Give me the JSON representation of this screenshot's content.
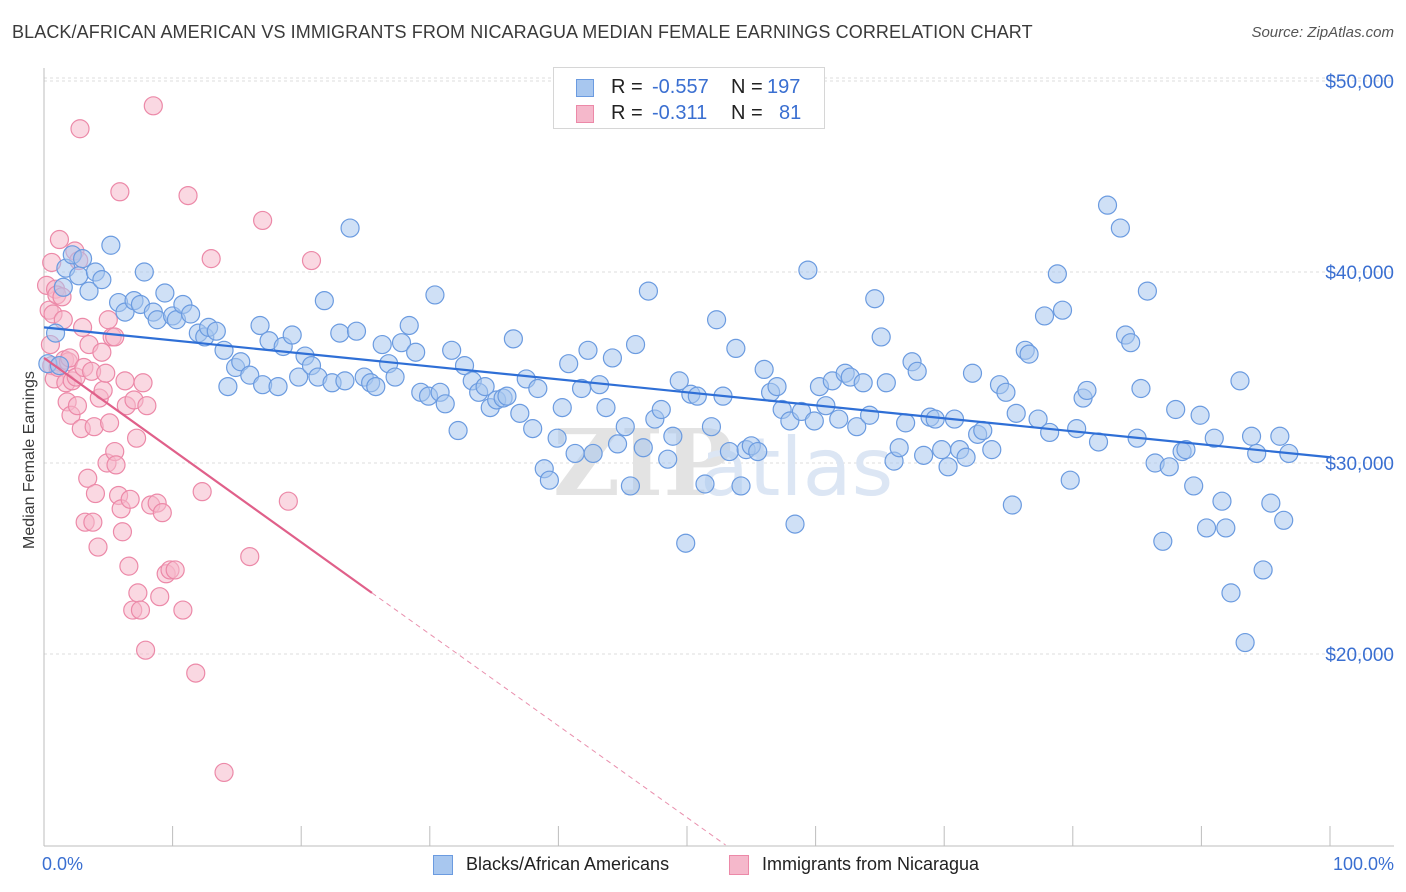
{
  "title": "BLACK/AFRICAN AMERICAN VS IMMIGRANTS FROM NICARAGUA MEDIAN FEMALE EARNINGS CORRELATION CHART",
  "source": "Source: ZipAtlas.com",
  "stats": {
    "r_label": "R =",
    "n_label": "N =",
    "row1": {
      "r": "-0.557",
      "n": "197"
    },
    "row2": {
      "r": "-0.311",
      "n": "81"
    }
  },
  "legend": {
    "series1": "Blacks/African Americans",
    "series2": "Immigrants from Nicaragua"
  },
  "colors": {
    "blue_fill": "#a8c7ef",
    "blue_stroke": "#6b9be0",
    "blue_line": "#2f6fd6",
    "pink_fill": "#f5b8cb",
    "pink_stroke": "#ec89a8",
    "pink_line": "#e0608a",
    "axis_text": "#3a6fd1"
  },
  "chart_data": {
    "type": "scatter",
    "title": "BLACK/AFRICAN AMERICAN VS IMMIGRANTS FROM NICARAGUA MEDIAN FEMALE EARNINGS CORRELATION CHART",
    "xlabel": "",
    "ylabel": "Median Female Earnings",
    "xlim": [
      0,
      100
    ],
    "ylim": [
      10000,
      52000
    ],
    "x_tick_labels": [
      "0.0%",
      "100.0%"
    ],
    "y_ticks": [
      20000,
      30000,
      40000,
      50000
    ],
    "y_tick_labels": [
      "$20,000",
      "$30,000",
      "$40,000",
      "$50,000"
    ],
    "grid": true,
    "watermark": "ZIPatlas",
    "series": [
      {
        "name": "Blacks/African Americans",
        "r": -0.557,
        "n": 197,
        "trend": {
          "x": [
            0,
            100
          ],
          "y": [
            37100,
            30300
          ]
        },
        "points": [
          [
            0.3,
            35200
          ],
          [
            0.9,
            36800
          ],
          [
            1.2,
            35100
          ],
          [
            1.5,
            39200
          ],
          [
            1.7,
            40200
          ],
          [
            2.2,
            40900
          ],
          [
            2.7,
            39800
          ],
          [
            3.0,
            40700
          ],
          [
            3.5,
            39000
          ],
          [
            4.0,
            40000
          ],
          [
            4.5,
            39600
          ],
          [
            5.2,
            41400
          ],
          [
            5.8,
            38400
          ],
          [
            6.3,
            37900
          ],
          [
            7.0,
            38500
          ],
          [
            7.5,
            38300
          ],
          [
            7.8,
            40000
          ],
          [
            8.5,
            37900
          ],
          [
            8.8,
            37500
          ],
          [
            9.4,
            38900
          ],
          [
            10.0,
            37700
          ],
          [
            10.3,
            37500
          ],
          [
            10.8,
            38300
          ],
          [
            11.4,
            37800
          ],
          [
            12.0,
            36800
          ],
          [
            12.5,
            36600
          ],
          [
            12.8,
            37100
          ],
          [
            13.4,
            36900
          ],
          [
            14.0,
            35900
          ],
          [
            14.3,
            34000
          ],
          [
            14.9,
            35000
          ],
          [
            15.3,
            35300
          ],
          [
            16.0,
            34600
          ],
          [
            16.8,
            37200
          ],
          [
            17.0,
            34100
          ],
          [
            17.5,
            36400
          ],
          [
            18.2,
            34000
          ],
          [
            18.6,
            36100
          ],
          [
            19.3,
            36700
          ],
          [
            19.8,
            34500
          ],
          [
            20.3,
            35600
          ],
          [
            20.8,
            35100
          ],
          [
            21.3,
            34500
          ],
          [
            21.8,
            38500
          ],
          [
            22.4,
            34200
          ],
          [
            23.0,
            36800
          ],
          [
            23.4,
            34300
          ],
          [
            23.8,
            42300
          ],
          [
            24.3,
            36900
          ],
          [
            24.9,
            34500
          ],
          [
            25.4,
            34200
          ],
          [
            25.8,
            34000
          ],
          [
            26.3,
            36200
          ],
          [
            26.8,
            35200
          ],
          [
            27.3,
            34500
          ],
          [
            27.8,
            36300
          ],
          [
            28.4,
            37200
          ],
          [
            28.9,
            35800
          ],
          [
            29.3,
            33700
          ],
          [
            29.9,
            33500
          ],
          [
            30.4,
            38800
          ],
          [
            30.8,
            33700
          ],
          [
            31.2,
            33100
          ],
          [
            31.7,
            35900
          ],
          [
            32.2,
            31700
          ],
          [
            32.7,
            35100
          ],
          [
            33.3,
            34300
          ],
          [
            33.8,
            33700
          ],
          [
            34.3,
            34000
          ],
          [
            34.7,
            32900
          ],
          [
            35.2,
            33300
          ],
          [
            35.7,
            33400
          ],
          [
            36.0,
            33500
          ],
          [
            36.5,
            36500
          ],
          [
            37.0,
            32600
          ],
          [
            37.5,
            34400
          ],
          [
            38.0,
            31800
          ],
          [
            38.4,
            33900
          ],
          [
            38.9,
            29700
          ],
          [
            39.3,
            29100
          ],
          [
            39.9,
            31300
          ],
          [
            40.3,
            32900
          ],
          [
            40.8,
            35200
          ],
          [
            41.3,
            30500
          ],
          [
            41.8,
            33900
          ],
          [
            42.3,
            35900
          ],
          [
            42.7,
            30500
          ],
          [
            43.2,
            34100
          ],
          [
            43.7,
            32900
          ],
          [
            44.2,
            35500
          ],
          [
            44.6,
            31000
          ],
          [
            45.2,
            31900
          ],
          [
            45.6,
            28800
          ],
          [
            46.0,
            36200
          ],
          [
            46.6,
            30800
          ],
          [
            47.0,
            39000
          ],
          [
            47.5,
            32300
          ],
          [
            48.0,
            32800
          ],
          [
            48.5,
            30200
          ],
          [
            48.9,
            31400
          ],
          [
            49.4,
            34300
          ],
          [
            49.9,
            25800
          ],
          [
            50.3,
            33600
          ],
          [
            50.8,
            33500
          ],
          [
            51.4,
            28900
          ],
          [
            51.9,
            31900
          ],
          [
            52.3,
            37500
          ],
          [
            52.8,
            33500
          ],
          [
            53.3,
            30600
          ],
          [
            53.8,
            36000
          ],
          [
            54.2,
            28800
          ],
          [
            54.6,
            30700
          ],
          [
            55.0,
            30900
          ],
          [
            55.5,
            30600
          ],
          [
            56.0,
            34900
          ],
          [
            56.5,
            33700
          ],
          [
            57.0,
            34000
          ],
          [
            57.4,
            32800
          ],
          [
            58.0,
            32200
          ],
          [
            58.4,
            26800
          ],
          [
            58.9,
            32700
          ],
          [
            59.4,
            40100
          ],
          [
            59.9,
            32200
          ],
          [
            60.3,
            34000
          ],
          [
            60.8,
            33000
          ],
          [
            61.3,
            34300
          ],
          [
            61.8,
            32300
          ],
          [
            62.3,
            34700
          ],
          [
            62.7,
            34500
          ],
          [
            63.2,
            31900
          ],
          [
            63.7,
            34200
          ],
          [
            64.2,
            32500
          ],
          [
            64.6,
            38600
          ],
          [
            65.1,
            36600
          ],
          [
            65.5,
            34200
          ],
          [
            66.1,
            30100
          ],
          [
            66.5,
            30800
          ],
          [
            67.0,
            32100
          ],
          [
            67.5,
            35300
          ],
          [
            67.9,
            34800
          ],
          [
            68.4,
            30400
          ],
          [
            68.9,
            32400
          ],
          [
            69.3,
            32300
          ],
          [
            69.8,
            30700
          ],
          [
            70.3,
            29800
          ],
          [
            70.8,
            32300
          ],
          [
            71.2,
            30700
          ],
          [
            71.7,
            30300
          ],
          [
            72.2,
            34700
          ],
          [
            72.6,
            31500
          ],
          [
            73.0,
            31700
          ],
          [
            73.7,
            30700
          ],
          [
            74.3,
            34100
          ],
          [
            74.8,
            33700
          ],
          [
            75.3,
            27800
          ],
          [
            75.6,
            32600
          ],
          [
            76.3,
            35900
          ],
          [
            76.6,
            35700
          ],
          [
            77.3,
            32300
          ],
          [
            77.8,
            37700
          ],
          [
            78.2,
            31600
          ],
          [
            78.8,
            39900
          ],
          [
            79.2,
            38000
          ],
          [
            79.8,
            29100
          ],
          [
            80.3,
            31800
          ],
          [
            80.8,
            33400
          ],
          [
            81.1,
            33800
          ],
          [
            82.0,
            31100
          ],
          [
            82.7,
            43500
          ],
          [
            83.7,
            42300
          ],
          [
            84.1,
            36700
          ],
          [
            84.5,
            36300
          ],
          [
            85.0,
            31300
          ],
          [
            85.3,
            33900
          ],
          [
            85.8,
            39000
          ],
          [
            86.4,
            30000
          ],
          [
            87.0,
            25900
          ],
          [
            87.5,
            29800
          ],
          [
            88.0,
            32800
          ],
          [
            88.5,
            30600
          ],
          [
            88.8,
            30700
          ],
          [
            89.4,
            28800
          ],
          [
            89.9,
            32500
          ],
          [
            90.4,
            26600
          ],
          [
            91.0,
            31300
          ],
          [
            91.6,
            28000
          ],
          [
            91.9,
            26600
          ],
          [
            92.3,
            23200
          ],
          [
            93.0,
            34300
          ],
          [
            93.4,
            20600
          ],
          [
            93.9,
            31400
          ],
          [
            94.3,
            30500
          ],
          [
            94.8,
            24400
          ],
          [
            95.4,
            27900
          ],
          [
            96.1,
            31400
          ],
          [
            96.4,
            27000
          ],
          [
            96.8,
            30500
          ]
        ]
      },
      {
        "name": "Immigrants from Nicaragua",
        "r": -0.311,
        "n": 81,
        "trend": {
          "x": [
            0,
            25.5
          ],
          "y": [
            35500,
            23200
          ]
        },
        "trend_dashed": {
          "x": [
            25.5,
            53
          ],
          "y": [
            23200,
            10000
          ]
        },
        "points": [
          [
            0.2,
            39300
          ],
          [
            0.4,
            38000
          ],
          [
            0.5,
            36200
          ],
          [
            0.6,
            35100
          ],
          [
            0.6,
            40500
          ],
          [
            0.7,
            37800
          ],
          [
            0.8,
            34400
          ],
          [
            0.9,
            39100
          ],
          [
            1.0,
            38800
          ],
          [
            1.1,
            35000
          ],
          [
            1.2,
            41700
          ],
          [
            1.4,
            38700
          ],
          [
            1.5,
            37500
          ],
          [
            1.6,
            35400
          ],
          [
            1.7,
            34200
          ],
          [
            1.8,
            33200
          ],
          [
            1.9,
            35300
          ],
          [
            2.0,
            35500
          ],
          [
            2.1,
            32500
          ],
          [
            2.2,
            34300
          ],
          [
            2.4,
            41100
          ],
          [
            2.5,
            34500
          ],
          [
            2.6,
            33000
          ],
          [
            2.7,
            40600
          ],
          [
            2.9,
            31800
          ],
          [
            3.0,
            37100
          ],
          [
            3.1,
            35000
          ],
          [
            3.2,
            26900
          ],
          [
            3.4,
            29200
          ],
          [
            3.5,
            36200
          ],
          [
            3.7,
            34800
          ],
          [
            3.8,
            26900
          ],
          [
            3.9,
            31900
          ],
          [
            4.0,
            28400
          ],
          [
            4.2,
            25600
          ],
          [
            4.3,
            33400
          ],
          [
            4.5,
            35800
          ],
          [
            4.6,
            33800
          ],
          [
            4.8,
            34700
          ],
          [
            4.9,
            30000
          ],
          [
            5.0,
            37500
          ],
          [
            5.1,
            32100
          ],
          [
            5.3,
            36600
          ],
          [
            5.5,
            30600
          ],
          [
            5.6,
            29900
          ],
          [
            5.8,
            28300
          ],
          [
            5.9,
            44200
          ],
          [
            6.0,
            27600
          ],
          [
            6.1,
            26400
          ],
          [
            6.3,
            34300
          ],
          [
            6.4,
            33000
          ],
          [
            6.6,
            24600
          ],
          [
            6.7,
            28100
          ],
          [
            6.9,
            22300
          ],
          [
            7.0,
            33300
          ],
          [
            7.2,
            31300
          ],
          [
            7.3,
            23200
          ],
          [
            7.5,
            22300
          ],
          [
            7.7,
            34200
          ],
          [
            7.9,
            20200
          ],
          [
            8.0,
            33000
          ],
          [
            8.3,
            27800
          ],
          [
            8.5,
            48700
          ],
          [
            8.8,
            27900
          ],
          [
            9.0,
            23000
          ],
          [
            9.2,
            27400
          ],
          [
            9.5,
            24200
          ],
          [
            9.8,
            24400
          ],
          [
            10.2,
            24400
          ],
          [
            10.8,
            22300
          ],
          [
            11.2,
            44000
          ],
          [
            11.8,
            19000
          ],
          [
            12.3,
            28500
          ],
          [
            13.0,
            40700
          ],
          [
            14.0,
            13800
          ],
          [
            16.0,
            25100
          ],
          [
            17.0,
            42700
          ],
          [
            19.0,
            28000
          ],
          [
            20.8,
            40600
          ],
          [
            2.8,
            47500
          ],
          [
            5.5,
            36600
          ]
        ]
      }
    ]
  }
}
